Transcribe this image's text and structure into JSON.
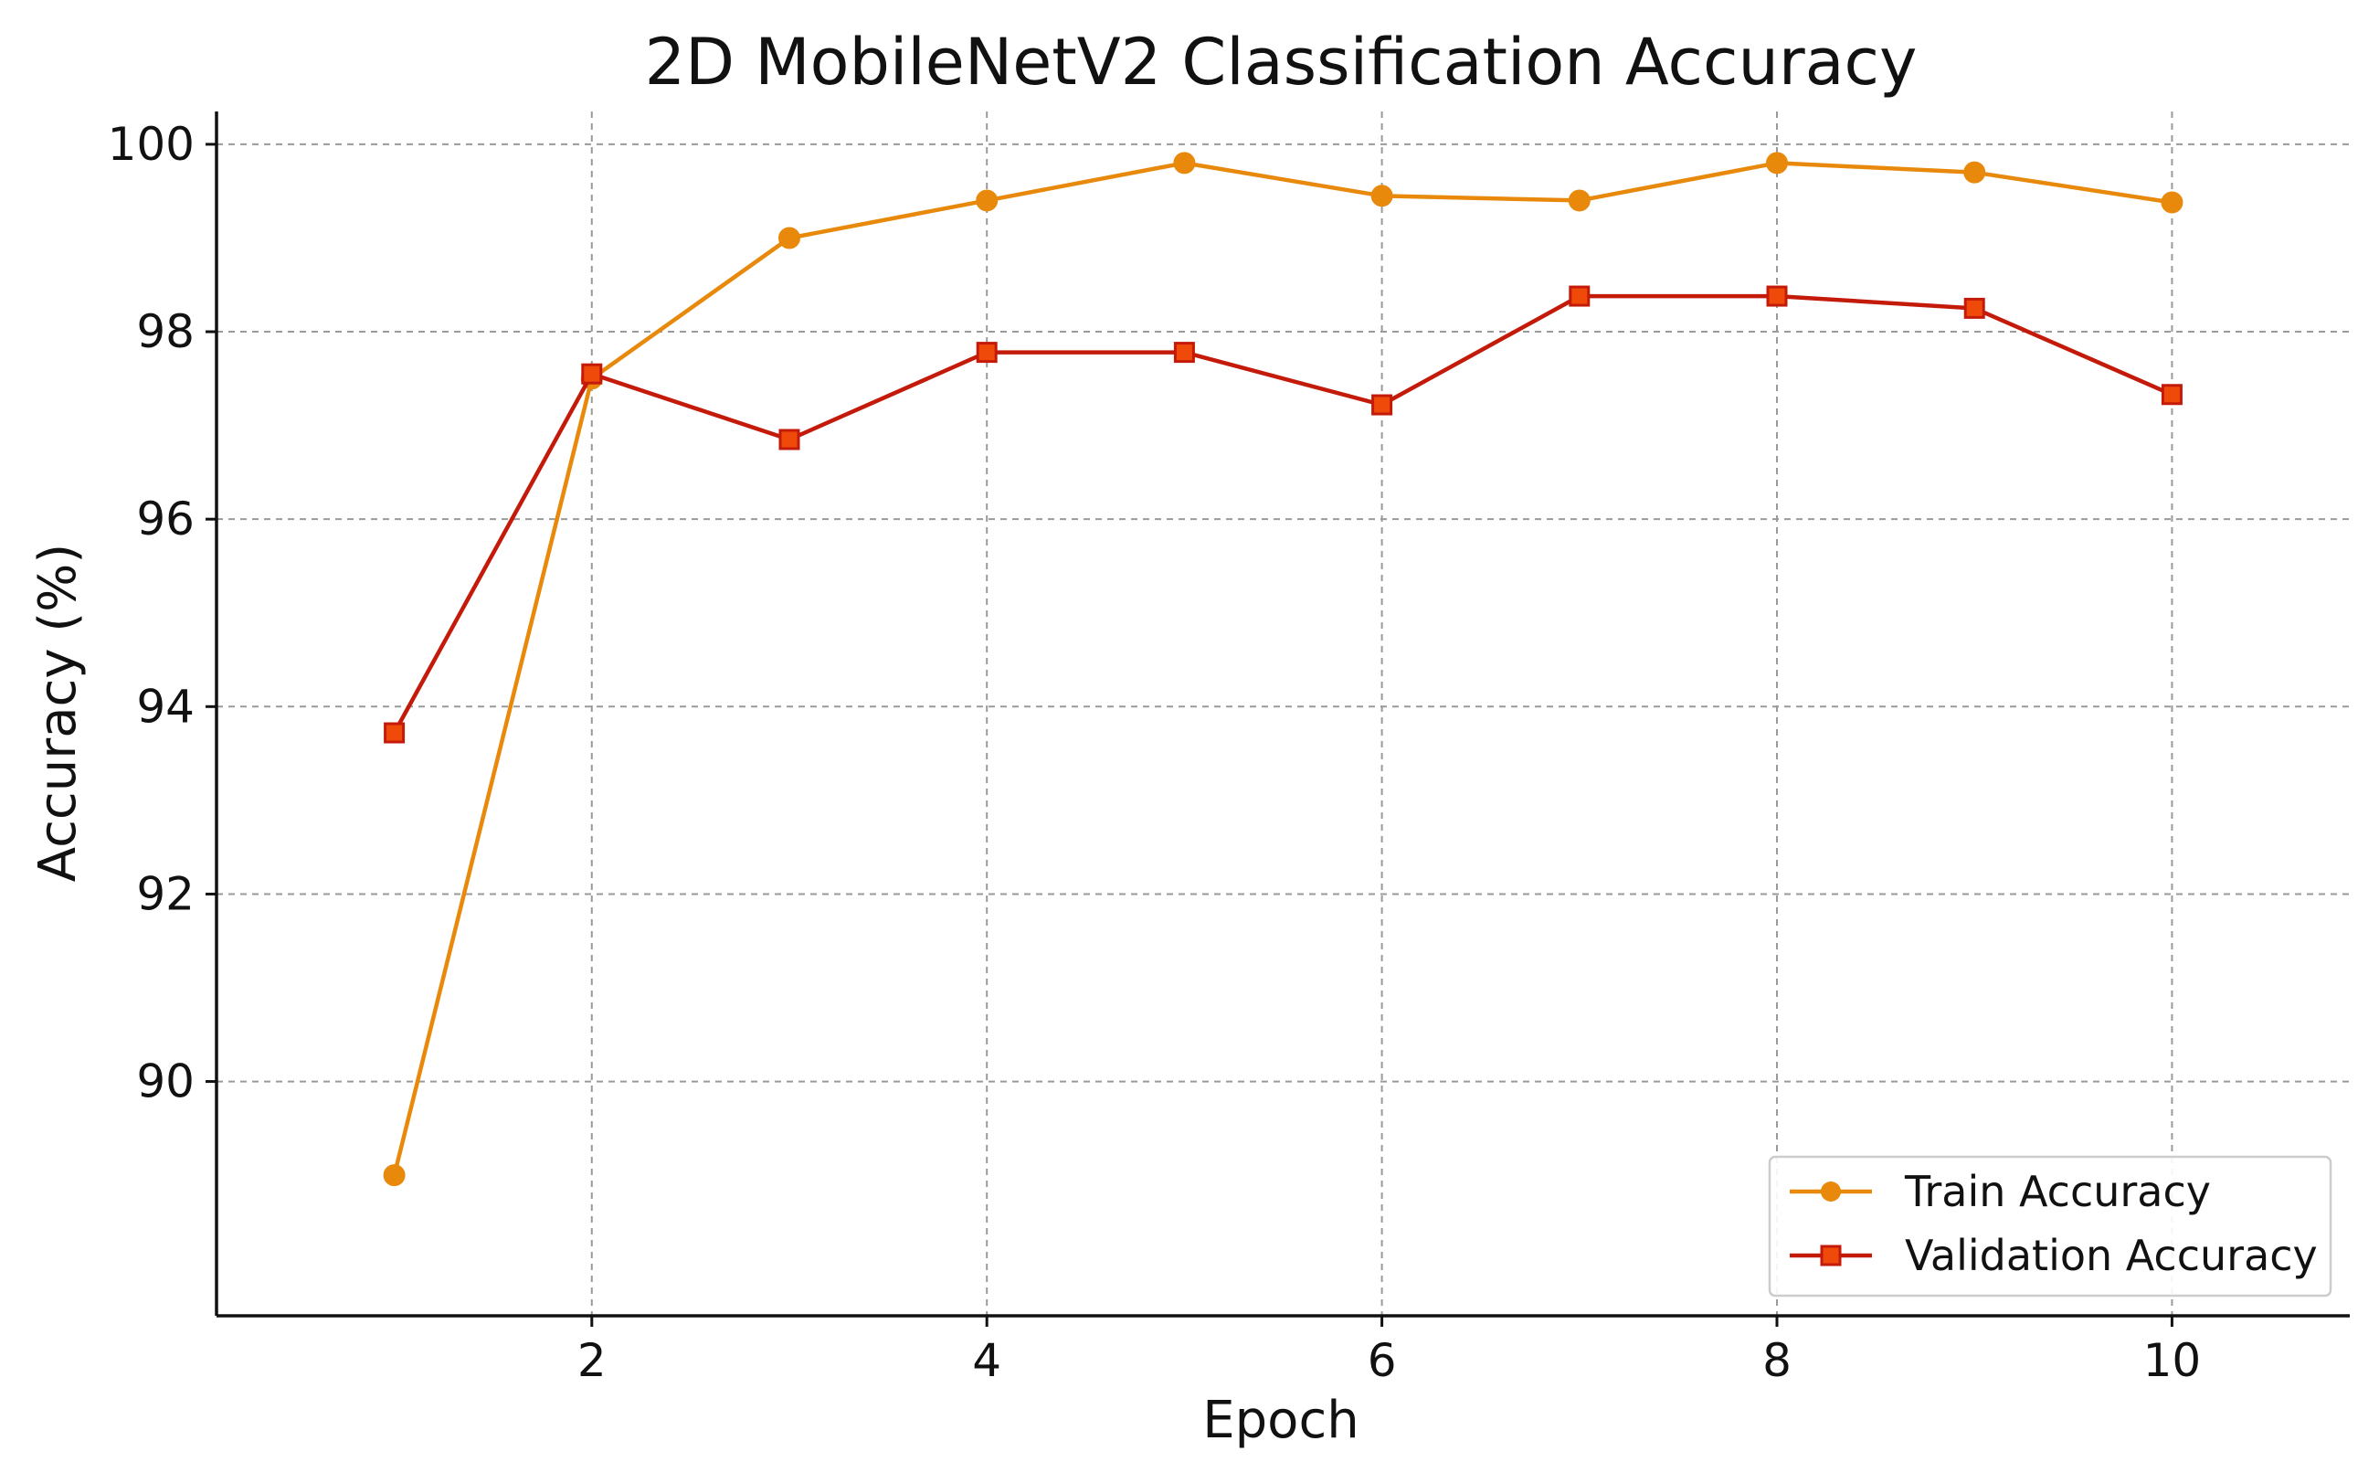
{
  "chart_data": {
    "type": "line",
    "title": "2D MobileNetV2 Classification Accuracy",
    "xlabel": "Epoch",
    "ylabel": "Accuracy (%)",
    "x": [
      1,
      2,
      3,
      4,
      5,
      6,
      7,
      8,
      9,
      10
    ],
    "xlim": [
      0.1,
      10.9
    ],
    "ylim": [
      87.5,
      100.35
    ],
    "xticks": [
      2,
      4,
      6,
      8,
      10
    ],
    "yticks": [
      90,
      92,
      94,
      96,
      98,
      100
    ],
    "grid": true,
    "legend_position": "lower-right",
    "series": [
      {
        "name": "Train Accuracy",
        "color": "#E8890C",
        "marker": "circle",
        "values": [
          89.0,
          97.5,
          99.0,
          99.4,
          99.8,
          99.45,
          99.4,
          99.8,
          99.7,
          99.38
        ]
      },
      {
        "name": "Validation Accuracy",
        "color": "#C41A0A",
        "marker_fill": "#F04A0A",
        "marker": "square",
        "values": [
          93.72,
          97.55,
          96.85,
          97.78,
          97.78,
          97.22,
          98.38,
          98.38,
          98.25,
          97.33
        ]
      }
    ]
  }
}
